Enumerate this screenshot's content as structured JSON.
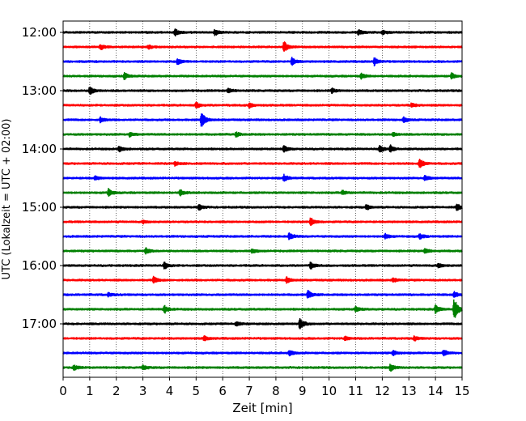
{
  "chart_data": {
    "type": "line",
    "title": "",
    "xlabel": "Zeit  [min]",
    "ylabel": "UTC (Lokalzeit = UTC + 02:00)",
    "xlim": [
      0,
      15
    ],
    "x_ticks": [
      0,
      1,
      2,
      3,
      4,
      5,
      6,
      7,
      8,
      9,
      10,
      11,
      12,
      13,
      14,
      15
    ],
    "grid": "vertical-dotted",
    "legend": "none",
    "y_ticks": [
      {
        "label": "12:00",
        "row": 0
      },
      {
        "label": "13:00",
        "row": 4
      },
      {
        "label": "14:00",
        "row": 8
      },
      {
        "label": "15:00",
        "row": 12
      },
      {
        "label": "16:00",
        "row": 16
      },
      {
        "label": "17:00",
        "row": 20
      }
    ],
    "trace_colors": [
      "#000000",
      "#ff0000",
      "#0000ff",
      "#008000"
    ],
    "traces": [
      {
        "start": "12:00",
        "color": "#000000",
        "events": [
          {
            "t": 4.2,
            "amp": 0.55
          },
          {
            "t": 5.7,
            "amp": 0.4
          },
          {
            "t": 11.1,
            "amp": 0.35
          },
          {
            "t": 12.0,
            "amp": 0.3
          }
        ]
      },
      {
        "start": "12:15",
        "color": "#ff0000",
        "events": [
          {
            "t": 1.4,
            "amp": 0.4
          },
          {
            "t": 8.3,
            "amp": 0.8
          },
          {
            "t": 3.2,
            "amp": 0.25
          }
        ]
      },
      {
        "start": "12:30",
        "color": "#0000ff",
        "events": [
          {
            "t": 4.3,
            "amp": 0.4
          },
          {
            "t": 8.6,
            "amp": 0.5
          },
          {
            "t": 11.7,
            "amp": 0.5
          }
        ]
      },
      {
        "start": "12:45",
        "color": "#008000",
        "events": [
          {
            "t": 2.3,
            "amp": 0.45
          },
          {
            "t": 11.2,
            "amp": 0.35
          },
          {
            "t": 14.6,
            "amp": 0.4
          }
        ]
      },
      {
        "start": "13:00",
        "color": "#000000",
        "events": [
          {
            "t": 1.0,
            "amp": 0.6
          },
          {
            "t": 6.2,
            "amp": 0.3
          },
          {
            "t": 10.1,
            "amp": 0.3
          }
        ]
      },
      {
        "start": "13:15",
        "color": "#ff0000",
        "events": [
          {
            "t": 5.0,
            "amp": 0.4
          },
          {
            "t": 7.0,
            "amp": 0.35
          },
          {
            "t": 13.1,
            "amp": 0.3
          }
        ]
      },
      {
        "start": "13:30",
        "color": "#0000ff",
        "events": [
          {
            "t": 1.4,
            "amp": 0.35
          },
          {
            "t": 5.2,
            "amp": 1.1
          },
          {
            "t": 12.8,
            "amp": 0.35
          }
        ]
      },
      {
        "start": "13:45",
        "color": "#008000",
        "events": [
          {
            "t": 2.5,
            "amp": 0.3
          },
          {
            "t": 6.5,
            "amp": 0.3
          },
          {
            "t": 12.4,
            "amp": 0.25
          }
        ]
      },
      {
        "start": "14:00",
        "color": "#000000",
        "events": [
          {
            "t": 2.1,
            "amp": 0.4
          },
          {
            "t": 8.3,
            "amp": 0.45
          },
          {
            "t": 11.9,
            "amp": 0.5
          },
          {
            "t": 12.3,
            "amp": 0.45
          }
        ]
      },
      {
        "start": "14:15",
        "color": "#ff0000",
        "events": [
          {
            "t": 13.4,
            "amp": 0.7
          },
          {
            "t": 4.2,
            "amp": 0.25
          }
        ]
      },
      {
        "start": "14:30",
        "color": "#0000ff",
        "events": [
          {
            "t": 8.3,
            "amp": 0.45
          },
          {
            "t": 13.6,
            "amp": 0.35
          },
          {
            "t": 1.2,
            "amp": 0.25
          }
        ]
      },
      {
        "start": "14:45",
        "color": "#008000",
        "events": [
          {
            "t": 1.7,
            "amp": 0.5
          },
          {
            "t": 4.4,
            "amp": 0.4
          },
          {
            "t": 10.5,
            "amp": 0.3
          }
        ]
      },
      {
        "start": "15:00",
        "color": "#000000",
        "events": [
          {
            "t": 5.1,
            "amp": 0.4
          },
          {
            "t": 11.4,
            "amp": 0.35
          },
          {
            "t": 14.8,
            "amp": 0.45
          }
        ]
      },
      {
        "start": "15:15",
        "color": "#ff0000",
        "events": [
          {
            "t": 9.3,
            "amp": 0.6
          },
          {
            "t": 3.0,
            "amp": 0.25
          }
        ]
      },
      {
        "start": "15:30",
        "color": "#0000ff",
        "events": [
          {
            "t": 8.5,
            "amp": 0.5
          },
          {
            "t": 12.1,
            "amp": 0.35
          },
          {
            "t": 13.4,
            "amp": 0.35
          }
        ]
      },
      {
        "start": "15:45",
        "color": "#008000",
        "events": [
          {
            "t": 3.1,
            "amp": 0.4
          },
          {
            "t": 7.1,
            "amp": 0.3
          },
          {
            "t": 13.6,
            "amp": 0.35
          }
        ]
      },
      {
        "start": "16:00",
        "color": "#000000",
        "events": [
          {
            "t": 3.8,
            "amp": 0.5
          },
          {
            "t": 9.3,
            "amp": 0.45
          },
          {
            "t": 14.1,
            "amp": 0.35
          }
        ]
      },
      {
        "start": "16:15",
        "color": "#ff0000",
        "events": [
          {
            "t": 3.4,
            "amp": 0.45
          },
          {
            "t": 8.4,
            "amp": 0.4
          },
          {
            "t": 12.4,
            "amp": 0.3
          }
        ]
      },
      {
        "start": "16:30",
        "color": "#0000ff",
        "events": [
          {
            "t": 9.2,
            "amp": 0.55
          },
          {
            "t": 14.7,
            "amp": 0.4
          },
          {
            "t": 1.7,
            "amp": 0.25
          }
        ]
      },
      {
        "start": "16:45",
        "color": "#008000",
        "events": [
          {
            "t": 3.8,
            "amp": 0.55
          },
          {
            "t": 14.7,
            "amp": 1.6
          },
          {
            "t": 14.0,
            "amp": 0.55
          },
          {
            "t": 11.0,
            "amp": 0.35
          }
        ]
      },
      {
        "start": "17:00",
        "color": "#000000",
        "events": [
          {
            "t": 8.9,
            "amp": 0.8
          },
          {
            "t": 6.5,
            "amp": 0.3
          }
        ]
      },
      {
        "start": "17:15",
        "color": "#ff0000",
        "events": [
          {
            "t": 5.3,
            "amp": 0.35
          },
          {
            "t": 10.6,
            "amp": 0.3
          },
          {
            "t": 13.2,
            "amp": 0.3
          }
        ]
      },
      {
        "start": "17:30",
        "color": "#0000ff",
        "events": [
          {
            "t": 8.5,
            "amp": 0.4
          },
          {
            "t": 12.4,
            "amp": 0.35
          },
          {
            "t": 14.3,
            "amp": 0.4
          }
        ]
      },
      {
        "start": "17:45",
        "color": "#008000",
        "events": [
          {
            "t": 0.4,
            "amp": 0.35
          },
          {
            "t": 3.0,
            "amp": 0.3
          },
          {
            "t": 12.3,
            "amp": 0.5
          }
        ]
      }
    ]
  }
}
